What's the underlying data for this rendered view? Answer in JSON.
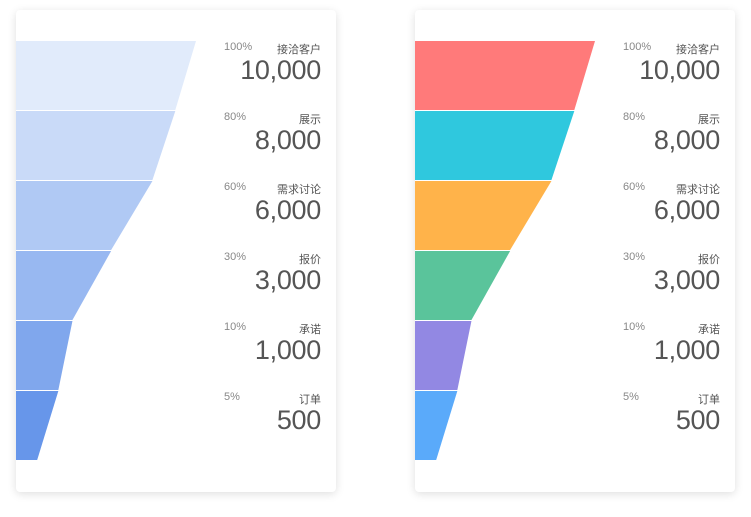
{
  "chart_data": [
    {
      "type": "funnel",
      "style": "gradient",
      "colors": {
        "top": "#edf3fd",
        "bottom": "#5b8de8"
      },
      "stages": [
        {
          "name": "接洽客户",
          "percent": "100%",
          "value": "10,000"
        },
        {
          "name": "展示",
          "percent": "80%",
          "value": "8,000"
        },
        {
          "name": "需求讨论",
          "percent": "60%",
          "value": "6,000"
        },
        {
          "name": "报价",
          "percent": "30%",
          "value": "3,000"
        },
        {
          "name": "承诺",
          "percent": "10%",
          "value": "1,000"
        },
        {
          "name": "订单",
          "percent": "5%",
          "value": "500"
        }
      ]
    },
    {
      "type": "funnel",
      "style": "multicolor",
      "colors": [
        "#ff7a7a",
        "#2fc8de",
        "#ffb34a",
        "#5ac49b",
        "#9288e3",
        "#5aaafa"
      ],
      "stages": [
        {
          "name": "接洽客户",
          "percent": "100%",
          "value": "10,000"
        },
        {
          "name": "展示",
          "percent": "80%",
          "value": "8,000"
        },
        {
          "name": "需求讨论",
          "percent": "60%",
          "value": "6,000"
        },
        {
          "name": "报价",
          "percent": "30%",
          "value": "3,000"
        },
        {
          "name": "承诺",
          "percent": "10%",
          "value": "1,000"
        },
        {
          "name": "订单",
          "percent": "5%",
          "value": "500"
        }
      ]
    }
  ]
}
